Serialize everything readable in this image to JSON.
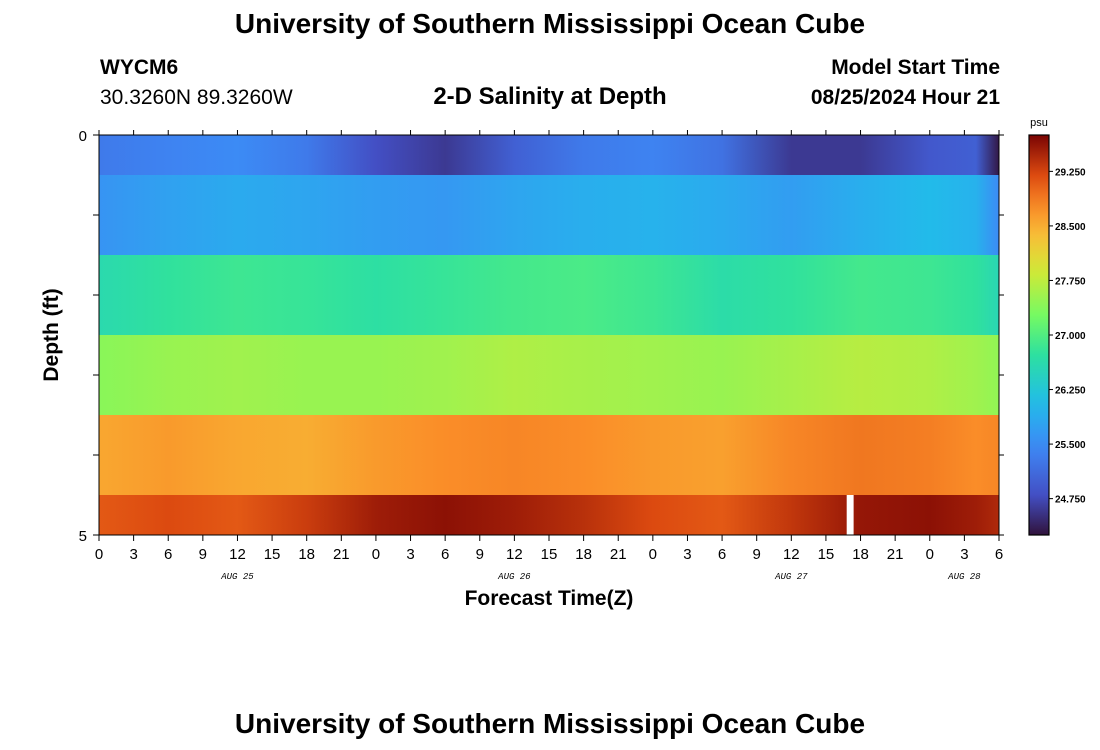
{
  "header": {
    "title": "University of Southern Mississippi Ocean Cube",
    "footer_title": "University of Southern Mississippi Ocean Cube",
    "station": "WYCM6",
    "coords": "30.3260N  89.3260W",
    "subtitle": "2-D Salinity at Depth",
    "start_label": "Model Start Time",
    "start_value": "08/25/2024 Hour 21"
  },
  "chart_data": {
    "type": "heatmap",
    "xlabel": "Forecast Time(Z)",
    "ylabel": "Depth (ft)",
    "ylim": [
      0,
      5
    ],
    "y_tick_labels": [
      "0",
      "5"
    ],
    "x_tick_labels": [
      "0",
      "3",
      "6",
      "9",
      "12",
      "15",
      "18",
      "21",
      "0",
      "3",
      "6",
      "9",
      "12",
      "15",
      "18",
      "21",
      "0",
      "3",
      "6",
      "9",
      "12",
      "15",
      "18",
      "21",
      "0",
      "3",
      "6"
    ],
    "x_hours_range": [
      0,
      78
    ],
    "day_labels": [
      {
        "text": "AUG 25",
        "hour": 12
      },
      {
        "text": "AUG 26",
        "hour": 36
      },
      {
        "text": "AUG 27",
        "hour": 60
      },
      {
        "text": "AUG 28",
        "hour": 75
      }
    ],
    "colorbar": {
      "unit": "psu",
      "min": 24.25,
      "max": 29.75,
      "tick_labels": [
        "29.250",
        "28.500",
        "27.750",
        "27.000",
        "26.250",
        "25.500",
        "24.750"
      ],
      "tick_values": [
        29.25,
        28.5,
        27.75,
        27.0,
        26.25,
        25.5,
        24.75
      ]
    },
    "depth_layers": [
      {
        "depth_range": [
          0.0,
          0.5
        ],
        "hours": [
          0,
          6,
          12,
          18,
          24,
          30,
          36,
          42,
          48,
          54,
          60,
          66,
          72,
          76,
          78
        ],
        "values": [
          25.3,
          25.4,
          25.5,
          25.3,
          24.8,
          24.6,
          25.0,
          25.3,
          25.4,
          25.2,
          24.6,
          24.6,
          24.9,
          25.0,
          24.3
        ]
      },
      {
        "depth_range": [
          0.5,
          1.5
        ],
        "hours": [
          0,
          6,
          12,
          18,
          24,
          30,
          36,
          42,
          48,
          54,
          60,
          66,
          72,
          76,
          78
        ],
        "values": [
          25.6,
          25.75,
          25.85,
          25.8,
          25.7,
          25.65,
          25.8,
          25.9,
          25.95,
          25.85,
          25.7,
          25.9,
          26.05,
          25.95,
          25.5
        ]
      },
      {
        "depth_range": [
          1.5,
          2.5
        ],
        "hours": [
          0,
          6,
          12,
          18,
          24,
          30,
          36,
          42,
          48,
          54,
          60,
          66,
          72,
          76,
          78
        ],
        "values": [
          26.6,
          26.75,
          26.85,
          26.8,
          26.7,
          26.8,
          26.9,
          26.95,
          26.85,
          26.65,
          26.75,
          26.9,
          26.85,
          26.75,
          26.55
        ]
      },
      {
        "depth_range": [
          2.5,
          3.5
        ],
        "hours": [
          0,
          6,
          12,
          18,
          24,
          30,
          36,
          42,
          48,
          54,
          60,
          66,
          72,
          76,
          78
        ],
        "values": [
          27.4,
          27.5,
          27.55,
          27.5,
          27.5,
          27.55,
          27.65,
          27.6,
          27.55,
          27.5,
          27.6,
          27.7,
          27.65,
          27.55,
          27.45
        ]
      },
      {
        "depth_range": [
          3.5,
          4.5
        ],
        "hours": [
          0,
          6,
          12,
          18,
          24,
          30,
          36,
          42,
          48,
          54,
          60,
          66,
          72,
          76,
          78
        ],
        "values": [
          28.55,
          28.65,
          28.55,
          28.5,
          28.65,
          28.75,
          28.8,
          28.75,
          28.65,
          28.6,
          28.8,
          28.9,
          28.85,
          28.75,
          28.8
        ]
      },
      {
        "depth_range": [
          4.5,
          5.0
        ],
        "hours": [
          0,
          6,
          12,
          18,
          24,
          30,
          36,
          42,
          48,
          54,
          60,
          66,
          72,
          76,
          78
        ],
        "values": [
          29.1,
          29.2,
          29.1,
          29.3,
          29.55,
          29.65,
          29.55,
          29.4,
          29.2,
          29.1,
          29.35,
          29.6,
          29.65,
          29.55,
          29.45
        ]
      }
    ],
    "missing": {
      "hour_start": 64.8,
      "hour_end": 65.4,
      "depth_range": [
        4.5,
        5.0
      ]
    }
  }
}
